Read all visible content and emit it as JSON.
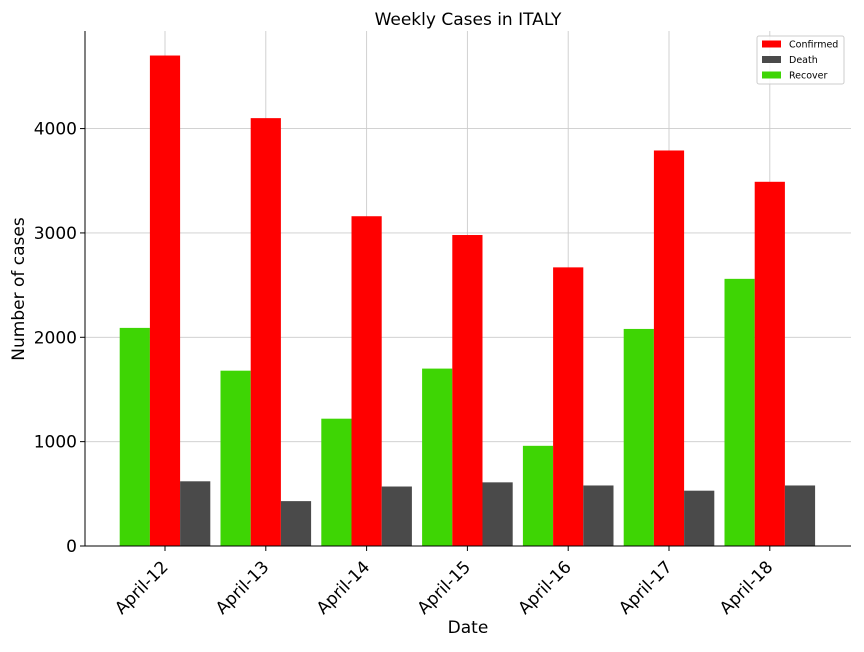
{
  "chart_data": {
    "type": "bar",
    "title": "Weekly Cases in ITALY",
    "xlabel": "Date",
    "ylabel": "Number of cases",
    "categories": [
      "April-12",
      "April-13",
      "April-14",
      "April-15",
      "April-16",
      "April-17",
      "April-18"
    ],
    "series": [
      {
        "name": "Recover",
        "color": "#3ed504",
        "values": [
          2090,
          1680,
          1220,
          1700,
          960,
          2080,
          2560
        ]
      },
      {
        "name": "Confirmed",
        "color": "#ff0000",
        "values": [
          4700,
          4100,
          3160,
          2980,
          2670,
          3790,
          3490
        ]
      },
      {
        "name": "Death",
        "color": "#4a4a4a",
        "values": [
          620,
          430,
          570,
          610,
          580,
          530,
          580
        ]
      }
    ],
    "ylim": [
      0,
      4935
    ],
    "yticks": [
      0,
      1000,
      2000,
      3000,
      4000
    ],
    "grid": true,
    "legend": {
      "position": "top-right",
      "entries": [
        "Confirmed",
        "Death",
        "Recover"
      ]
    }
  }
}
